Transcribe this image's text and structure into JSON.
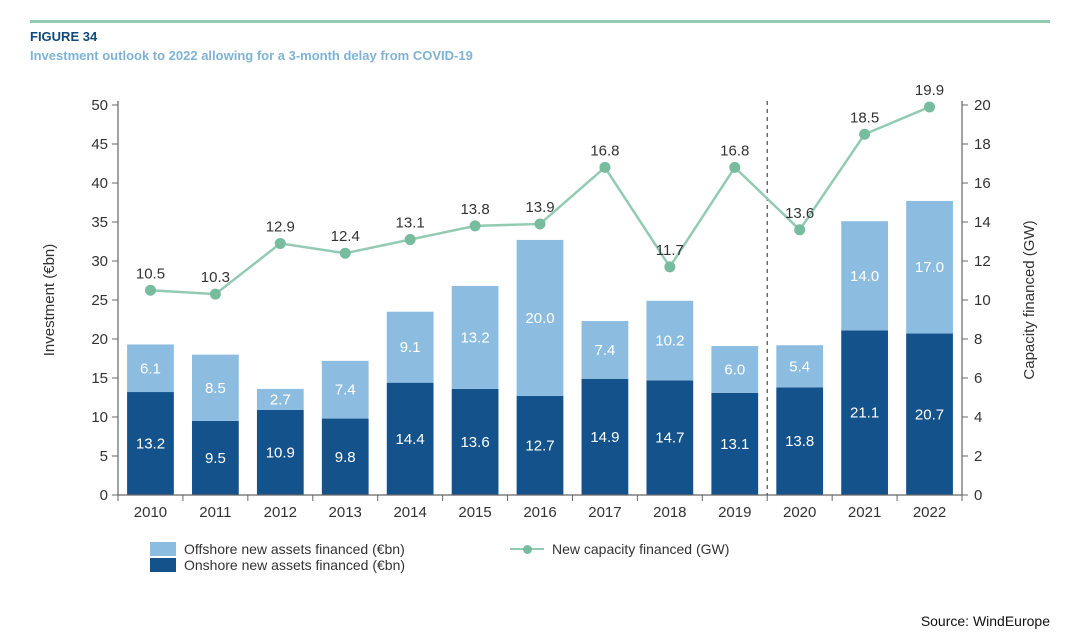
{
  "rule_color": "#93cbb2",
  "figure_label": "FIGURE 34",
  "figure_label_color": "#114a7a",
  "subtitle": "Investment outlook to 2022 allowing for a 3-month delay from COVID-19",
  "subtitle_color": "#7fb3d6",
  "source_label": "Source: WindEurope",
  "chart": {
    "type": "stacked-bar-with-line",
    "categories": [
      "2010",
      "2011",
      "2012",
      "2013",
      "2014",
      "2015",
      "2016",
      "2017",
      "2018",
      "2019",
      "2020",
      "2021",
      "2022"
    ],
    "onshore": [
      13.2,
      9.5,
      10.9,
      9.8,
      14.4,
      13.6,
      12.7,
      14.9,
      14.7,
      13.1,
      13.8,
      21.1,
      20.7
    ],
    "offshore": [
      6.1,
      8.5,
      2.7,
      7.4,
      9.1,
      13.2,
      20.0,
      7.4,
      10.2,
      6.0,
      5.4,
      14.0,
      17.0
    ],
    "capacity": [
      10.5,
      10.3,
      12.9,
      12.4,
      13.1,
      13.8,
      13.9,
      16.8,
      11.7,
      16.8,
      13.6,
      18.5,
      19.9
    ],
    "onshore_color": "#14528b",
    "offshore_color": "#8cbde0",
    "line_color": "#93cbb2",
    "marker_color": "#77bc9f",
    "axis_color": "#666666",
    "text_color": "#333333",
    "bg_color": "#ffffff",
    "left_axis_label": "Investment (€bn)",
    "right_axis_label": "Capacity financed (GW)",
    "y_left": {
      "min": 0,
      "max": 50,
      "step": 5
    },
    "y_right": {
      "min": 0,
      "max": 20,
      "step": 2
    },
    "divider_after_index": 9,
    "bar_width_ratio": 0.72,
    "value_fontsize": 15,
    "axis_fontsize": 15,
    "tick_fontsize": 15,
    "label_fontsize": 15
  },
  "legend": {
    "offshore": "Offshore new assets financed (€bn)",
    "onshore": "Onshore new assets financed (€bn)",
    "capacity": "New capacity financed (GW)"
  }
}
